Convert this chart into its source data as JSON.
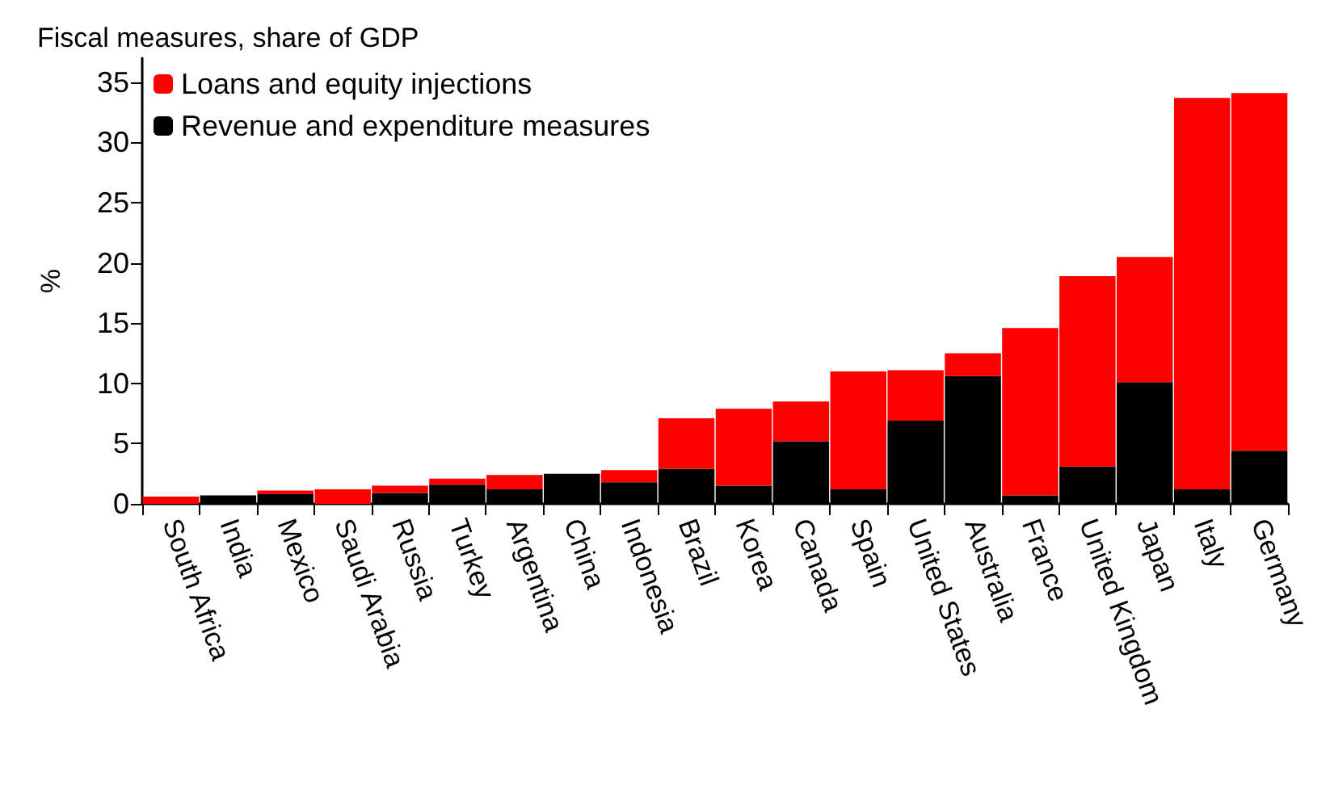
{
  "chart_data": {
    "type": "bar",
    "title": "Fiscal measures, share of GDP",
    "ylabel": "%",
    "stacked": true,
    "legend": "top left",
    "grid": false,
    "categories": [
      "South Africa",
      "India",
      "Mexico",
      "Saudi Arabia",
      "Russia",
      "Turkey",
      "Argentina",
      "China",
      "Indonesia",
      "Brazil",
      "Korea",
      "Canada",
      "Spain",
      "United States",
      "Australia",
      "France",
      "United Kingdom",
      "Japan",
      "Italy",
      "Germany"
    ],
    "ylim": [
      0,
      37
    ],
    "yticks": [
      0,
      5,
      10,
      15,
      20,
      25,
      30,
      35
    ],
    "series": [
      {
        "name": "Revenue and expenditure measures",
        "color": "#000000",
        "values": [
          0,
          0.7,
          0.8,
          0,
          0.9,
          1.6,
          1.2,
          2.5,
          1.8,
          2.9,
          1.5,
          5.2,
          1.2,
          6.9,
          10.6,
          0.7,
          3.1,
          10.1,
          1.2,
          4.4
        ]
      },
      {
        "name": "Loans and equity injections",
        "color": "#ff0000",
        "values": [
          0.6,
          0,
          0.3,
          1.2,
          0.6,
          0.5,
          1.2,
          0,
          1.0,
          4.2,
          6.4,
          3.3,
          9.8,
          4.2,
          1.9,
          13.9,
          15.8,
          10.4,
          32.5,
          29.7
        ]
      }
    ]
  }
}
